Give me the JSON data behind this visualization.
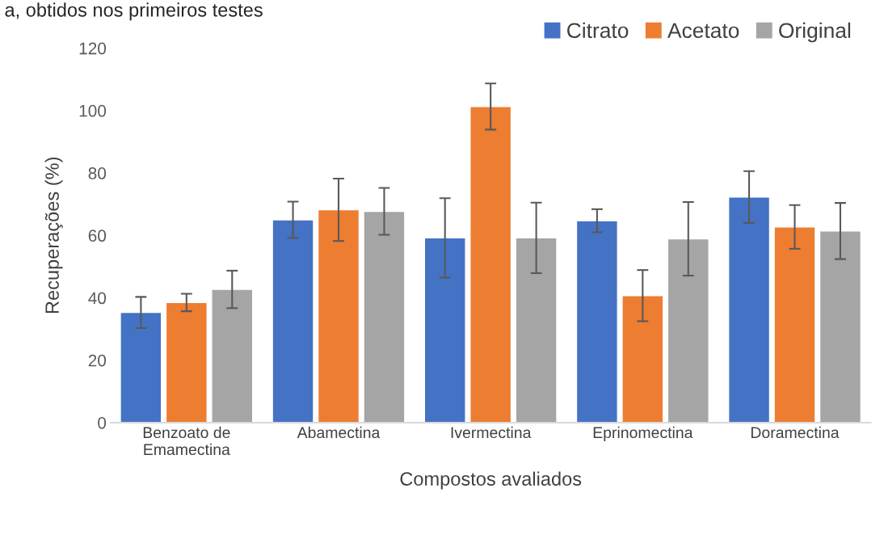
{
  "chart_data": {
    "type": "bar",
    "annotations": [
      "a, obtidos nos primeiros testes"
    ],
    "xlabel": "Compostos avaliados",
    "ylabel": "Recuperações (%)",
    "categories": [
      "Benzoato de\nEmamectina",
      "Abamectina",
      "Ivermectina",
      "Eprinomectina",
      "Doramectina"
    ],
    "series": [
      {
        "name": "Citrato",
        "color": "#4472c4",
        "values": [
          35.3,
          65.0,
          59.2,
          64.7,
          72.3
        ],
        "errors": [
          5,
          5.8,
          12.7,
          3.7,
          8.3
        ]
      },
      {
        "name": "Acetato",
        "color": "#ed7d31",
        "values": [
          38.5,
          68.2,
          101.3,
          40.7,
          62.7
        ],
        "errors": [
          2.8,
          10,
          7.4,
          8.2,
          7
        ]
      },
      {
        "name": "Original",
        "color": "#a5a5a5",
        "values": [
          42.7,
          67.7,
          59.2,
          58.9,
          61.4
        ],
        "errors": [
          6,
          7.5,
          11.3,
          11.8,
          9
        ]
      }
    ],
    "ylim": [
      0,
      120
    ],
    "yticks": [
      0,
      20,
      40,
      60,
      80,
      100,
      120
    ],
    "grid": false,
    "legend": "top right"
  }
}
